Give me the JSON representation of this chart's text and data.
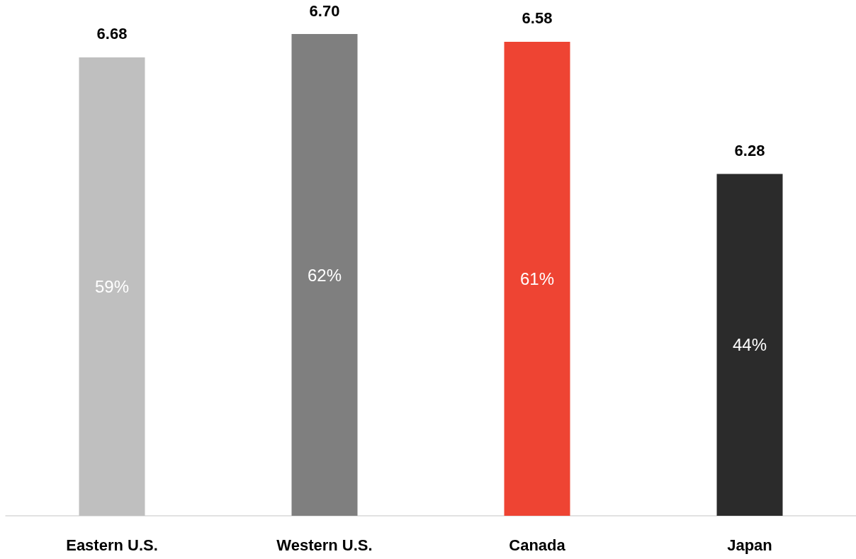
{
  "chart_data": {
    "type": "bar",
    "categories": [
      "Eastern U.S.",
      "Western U.S.",
      "Canada",
      "Japan"
    ],
    "values": [
      59,
      62,
      61,
      44
    ],
    "colors": [
      "#bfbfbf",
      "#7f7f7f",
      "#ee4433",
      "#2b2b2b"
    ],
    "value_labels": [
      "59%",
      "62%",
      "61%",
      "44%"
    ],
    "annotations": [
      {
        "text": "6.68",
        "x": "Eastern U.S.",
        "y": 59
      },
      {
        "text": "6.70",
        "x": "Western U.S.",
        "y": 62
      },
      {
        "text": "6.58",
        "x": "Canada",
        "y": 61
      },
      {
        "text": "6.28",
        "x": "Japan",
        "y": 44
      }
    ]
  }
}
